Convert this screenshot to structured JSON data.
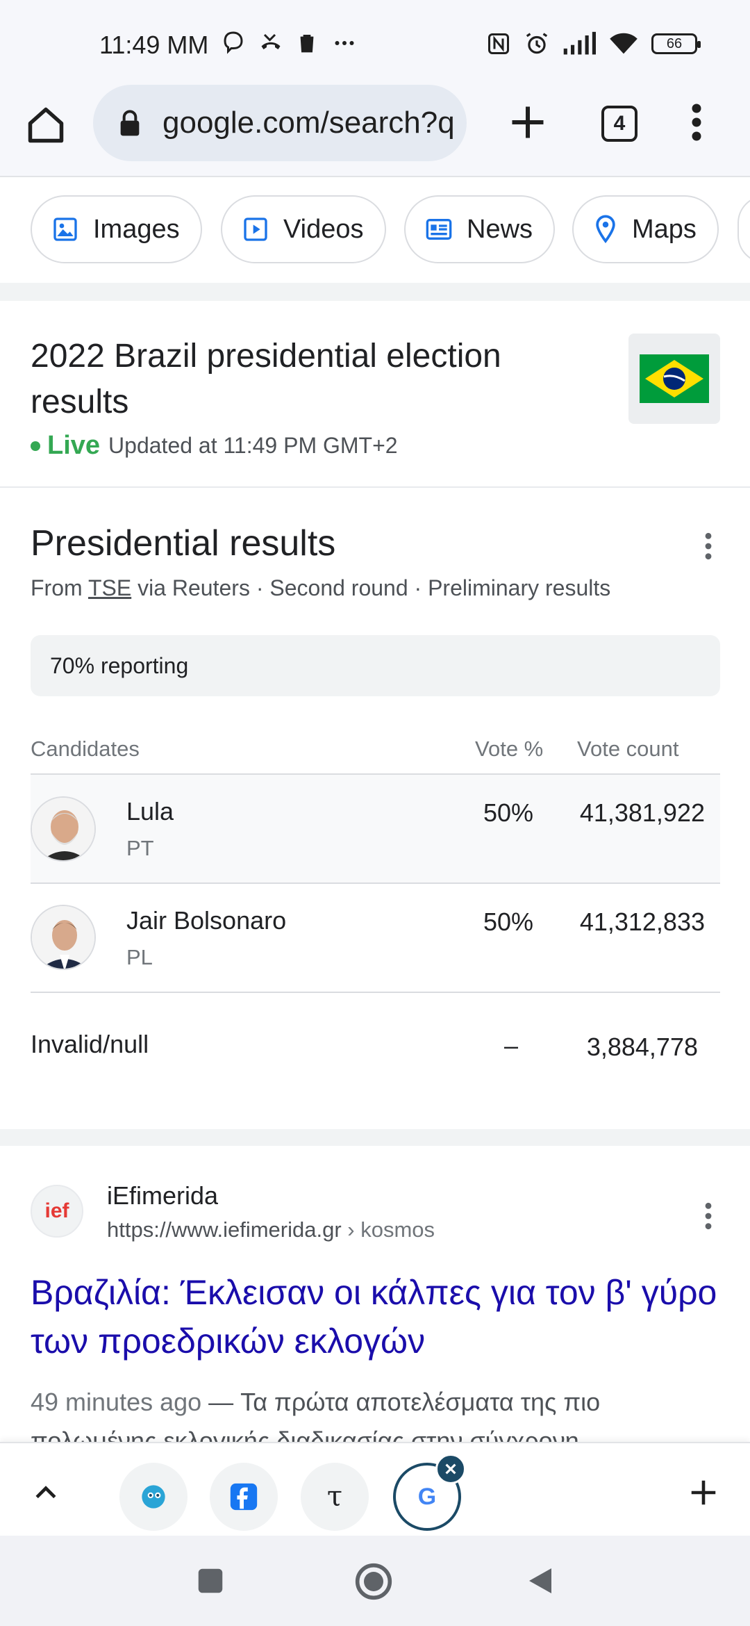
{
  "status_bar": {
    "time": "11:49 MM",
    "battery": "66"
  },
  "browser": {
    "url": "google.com/search?q",
    "tab_count": "4"
  },
  "chips": [
    {
      "label": "Images",
      "icon": "image-icon"
    },
    {
      "label": "Videos",
      "icon": "video-icon"
    },
    {
      "label": "News",
      "icon": "news-icon"
    },
    {
      "label": "Maps",
      "icon": "map-pin-icon"
    }
  ],
  "election": {
    "title": "2022 Brazil presidential election results",
    "live_label": "Live",
    "updated": "Updated at 11:49 PM GMT+2"
  },
  "results": {
    "heading": "Presidential results",
    "source_prefix": "From ",
    "source_link": "TSE",
    "source_suffix": " via Reuters · Second round · Preliminary results",
    "reporting": "70% reporting",
    "columns": {
      "candidates": "Candidates",
      "vote_pct": "Vote %",
      "vote_count": "Vote count"
    },
    "rows": [
      {
        "name": "Lula",
        "party": "PT",
        "pct": "50%",
        "count": "41,381,922"
      },
      {
        "name": "Jair Bolsonaro",
        "party": "PL",
        "pct": "50%",
        "count": "41,312,833"
      }
    ],
    "invalid": {
      "label": "Invalid/null",
      "pct": "–",
      "count": "3,884,778"
    }
  },
  "search_result": {
    "logo_text": "ief",
    "site_name": "iEfimerida",
    "url": "https://www.iefimerida.gr",
    "breadcrumb": " › kosmos",
    "title": "Βραζιλία: Έκλεισαν οι κάλπες για τον β' γύρο των προεδρικών εκλογών",
    "snippet_time": "49 minutes ago",
    "snippet_text": " — Τα πρώτα αποτελέσματα της πιο πολωμένης εκλογικής διαδικασίας στην σύγχρονη"
  },
  "tabstrip": {
    "tabs": [
      "chatbot-tab-icon",
      "facebook-tab-icon",
      "tau-tab-icon",
      "google-tab-icon"
    ],
    "tau_glyph": "τ",
    "google_glyph": "G"
  },
  "colors": {
    "live_green": "#34a853",
    "link_blue": "#1a0dab",
    "chip_icon_blue": "#1a73e8",
    "active_tab_ring": "#1b4a66"
  }
}
